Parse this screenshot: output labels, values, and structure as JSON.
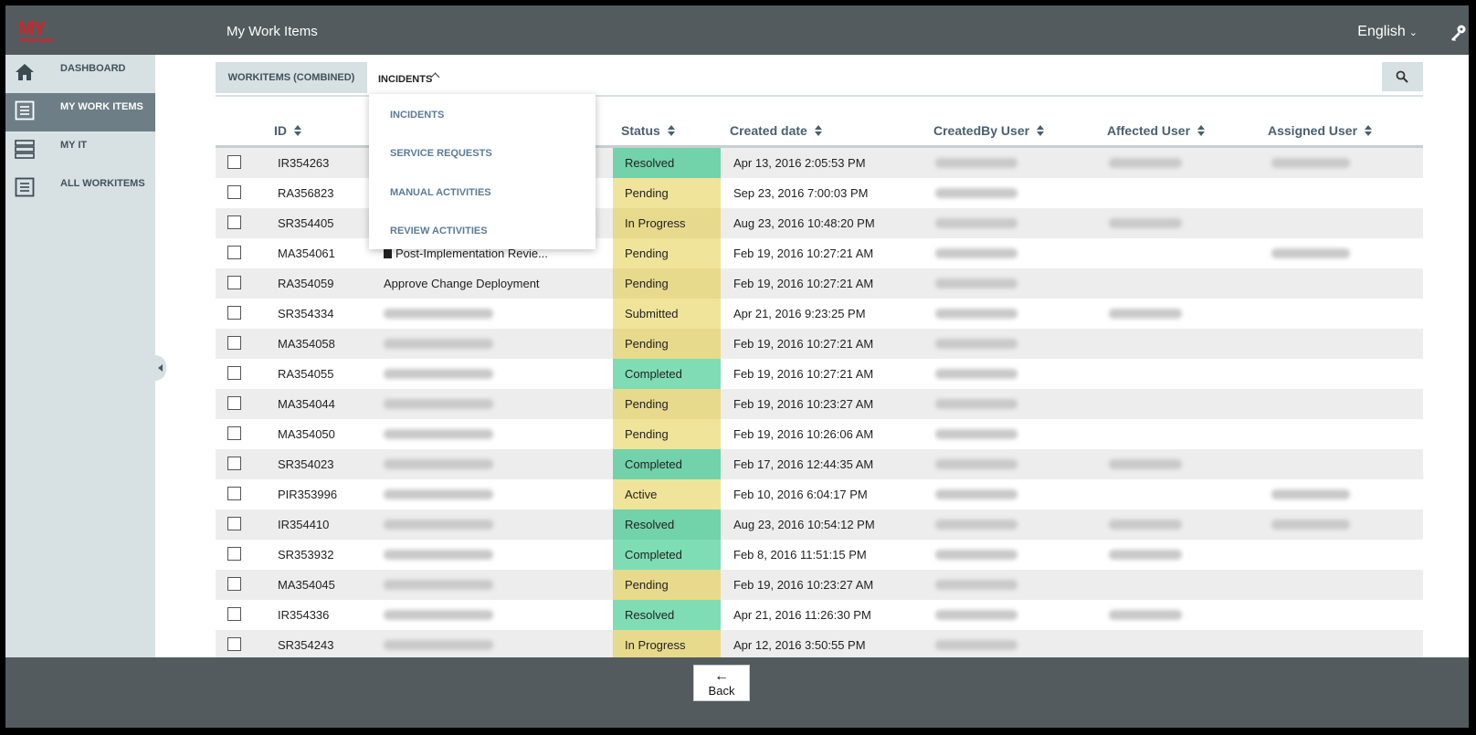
{
  "header": {
    "logo_text": "MY",
    "title": "My Work Items",
    "language": "English"
  },
  "sidebar": {
    "items": [
      {
        "label": "DASHBOARD",
        "icon": "home-icon",
        "active": false
      },
      {
        "label": "MY WORK ITEMS",
        "icon": "list-icon",
        "active": true
      },
      {
        "label": "MY IT",
        "icon": "server-icon",
        "active": false
      },
      {
        "label": "ALL WORKITEMS",
        "icon": "list-icon",
        "active": false
      }
    ]
  },
  "tabs": {
    "combined": "WORKITEMS (COMBINED)",
    "incidents": "INCIDENTS"
  },
  "dropdown": {
    "items": [
      "INCIDENTS",
      "SERVICE REQUESTS",
      "MANUAL ACTIVITIES",
      "REVIEW ACTIVITIES"
    ]
  },
  "table": {
    "headers": {
      "id": "ID",
      "status": "Status",
      "created": "Created date",
      "createdby": "CreatedBy User",
      "affected": "Affected User",
      "assigned": "Assigned User"
    },
    "rows": [
      {
        "id": "IR354263",
        "title": "",
        "status": "Resolved",
        "created": "Apr 13, 2016 2:05:53 PM"
      },
      {
        "id": "RA356823",
        "title": "",
        "status": "Pending",
        "created": "Sep 23, 2016 7:00:03 PM"
      },
      {
        "id": "SR354405",
        "title": "",
        "status": "In Progress",
        "created": "Aug 23, 2016 10:48:20 PM"
      },
      {
        "id": "MA354061",
        "title": "Post-Implementation Revie...",
        "status": "Pending",
        "created": "Feb 19, 2016 10:27:21 AM"
      },
      {
        "id": "RA354059",
        "title": "Approve Change Deployment",
        "status": "Pending",
        "created": "Feb 19, 2016 10:27:21 AM"
      },
      {
        "id": "SR354334",
        "title": "",
        "status": "Submitted",
        "created": "Apr 21, 2016 9:23:25 PM"
      },
      {
        "id": "MA354058",
        "title": "",
        "status": "Pending",
        "created": "Feb 19, 2016 10:27:21 AM"
      },
      {
        "id": "RA354055",
        "title": "",
        "status": "Completed",
        "created": "Feb 19, 2016 10:27:21 AM"
      },
      {
        "id": "MA354044",
        "title": "",
        "status": "Pending",
        "created": "Feb 19, 2016 10:23:27 AM"
      },
      {
        "id": "MA354050",
        "title": "",
        "status": "Pending",
        "created": "Feb 19, 2016 10:26:06 AM"
      },
      {
        "id": "SR354023",
        "title": "",
        "status": "Completed",
        "created": "Feb 17, 2016 12:44:35 AM"
      },
      {
        "id": "PIR353996",
        "title": "",
        "status": "Active",
        "created": "Feb 10, 2016 6:04:17 PM"
      },
      {
        "id": "IR354410",
        "title": "",
        "status": "Resolved",
        "created": "Aug 23, 2016 10:54:12 PM"
      },
      {
        "id": "SR353932",
        "title": "",
        "status": "Completed",
        "created": "Feb 8, 2016 11:51:15 PM"
      },
      {
        "id": "MA354045",
        "title": "",
        "status": "Pending",
        "created": "Feb 19, 2016 10:23:27 AM"
      },
      {
        "id": "IR354336",
        "title": "",
        "status": "Resolved",
        "created": "Apr 21, 2016 11:26:30 PM"
      },
      {
        "id": "SR354243",
        "title": "",
        "status": "In Progress",
        "created": "Apr 12, 2016 3:50:55 PM"
      }
    ]
  },
  "footer": {
    "back_label": "Back"
  },
  "colors": {
    "topbar": "#535b5f",
    "sidebar": "#d7e0e3",
    "status_green": "#7fddb5",
    "status_yellow": "#f0e49a",
    "logo_red": "#d2232a"
  }
}
